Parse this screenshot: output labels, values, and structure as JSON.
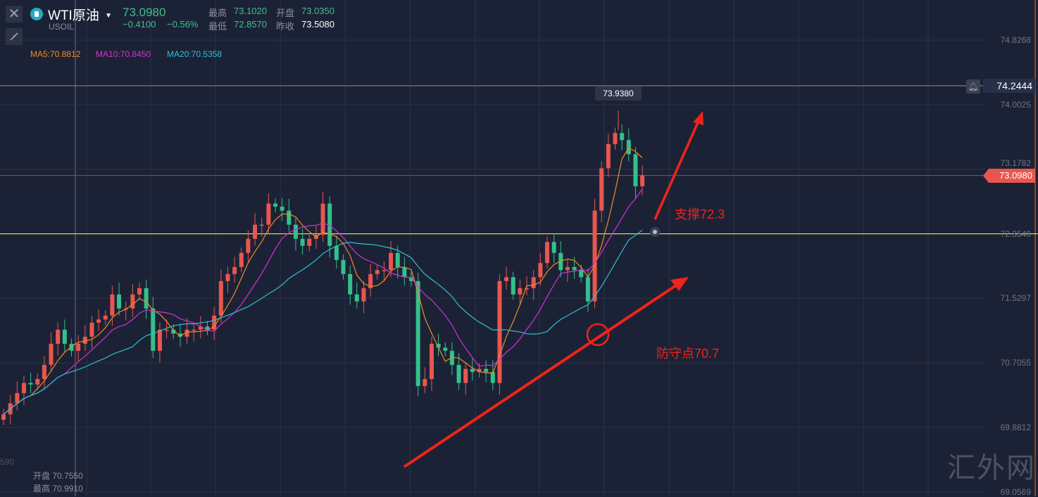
{
  "header": {
    "symbol_name": "WTI原油",
    "symbol_code": "USOIL",
    "price": "73.0980",
    "change": "−0.4100",
    "change_pct": "−0.56%",
    "stats": {
      "high_label": "最高",
      "high_value": "73.1020",
      "open_label": "开盘",
      "open_value": "73.0350",
      "low_label": "最低",
      "low_value": "72.8570",
      "prev_close_label": "昨收",
      "prev_close_value": "73.5080"
    }
  },
  "ma_legend": {
    "ma5": "MA5:70.8812",
    "ma10": "MA10:70.8450",
    "ma20": "MA20:70.5358"
  },
  "bottom_info": {
    "left_axis_fragment": "590",
    "open": "开盘 70.7550",
    "high": "最高 70.9910"
  },
  "price_labels": {
    "alert_line": "74.2444",
    "current_price": "73.0980",
    "high_marker": "73.9380"
  },
  "annotations": {
    "support": "支撑72.3",
    "defense": "防守点70.7"
  },
  "watermark": "汇外网",
  "colors": {
    "up": "#e9564f",
    "down": "#33c08b",
    "ma5": "#f08a24",
    "ma10": "#d62fd6",
    "ma20": "#2bc0d8",
    "support_line": "#e8e84a",
    "annotation": "#f0231b"
  },
  "chart_data": {
    "type": "candlestick",
    "y_ticks": [
      "74.8268",
      "74.0025",
      "73.1782",
      "72.3540",
      "71.5297",
      "70.7055",
      "69.8812",
      "69.0569"
    ],
    "ylim": [
      69.0569,
      74.8268
    ],
    "grid": true,
    "close": [
      70.05,
      70.19,
      70.32,
      70.45,
      70.43,
      70.5,
      70.68,
      70.95,
      71.13,
      70.95,
      70.86,
      70.95,
      71.04,
      71.22,
      71.26,
      71.31,
      71.58,
      71.4,
      71.4,
      71.58,
      71.66,
      71.4,
      70.86,
      71.13,
      71.13,
      71.08,
      71.04,
      71.13,
      71.13,
      71.17,
      71.13,
      71.31,
      71.75,
      71.84,
      71.93,
      72.11,
      72.29,
      72.47,
      72.47,
      72.74,
      72.7,
      72.65,
      72.47,
      72.29,
      72.2,
      72.29,
      72.34,
      72.74,
      72.2,
      72.02,
      71.84,
      71.58,
      71.49,
      71.66,
      71.84,
      71.89,
      71.89,
      72.11,
      71.93,
      71.8,
      71.75,
      70.41,
      70.5,
      70.95,
      70.9,
      70.86,
      70.68,
      70.45,
      70.63,
      70.59,
      70.63,
      70.59,
      70.45,
      71.75,
      71.8,
      71.58,
      71.66,
      71.66,
      71.8,
      71.98,
      72.25,
      72.11,
      71.89,
      71.93,
      71.89,
      71.8,
      71.49,
      72.65,
      73.19,
      73.5,
      73.64,
      73.55,
      73.37,
      72.96,
      73.1
    ],
    "horizontal_levels": {
      "alert": 74.2444,
      "current": 73.098,
      "support": 72.354
    }
  }
}
